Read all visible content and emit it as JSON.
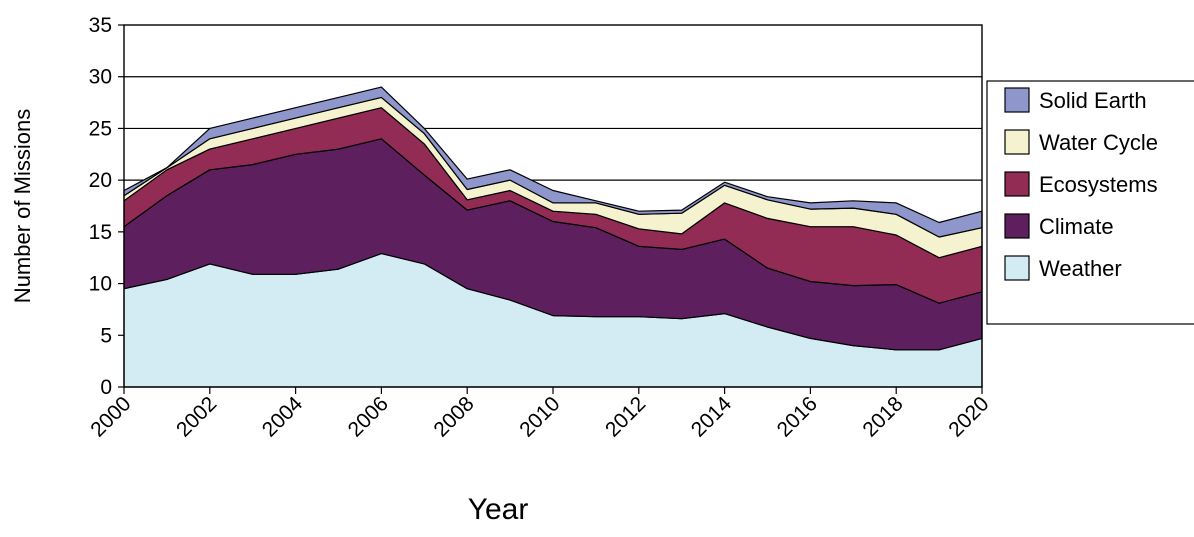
{
  "chart_data": {
    "type": "area",
    "stacked": true,
    "x": [
      2000,
      2001,
      2002,
      2003,
      2004,
      2005,
      2006,
      2007,
      2008,
      2009,
      2010,
      2011,
      2012,
      2013,
      2014,
      2015,
      2016,
      2017,
      2018,
      2019,
      2020
    ],
    "x_tick_labels": [
      "2000",
      "2002",
      "2004",
      "2006",
      "2008",
      "2010",
      "2012",
      "2014",
      "2016",
      "2018",
      "2020"
    ],
    "xlabel": "Year",
    "ylabel": "Number of Missions",
    "ylim": [
      0,
      35
    ],
    "y_ticks": [
      "0",
      "5",
      "10",
      "15",
      "20",
      "25",
      "30",
      "35"
    ],
    "grid": "horizontal",
    "legend_position": "right",
    "series": [
      {
        "name": "Weather",
        "color": "#d3ebf2",
        "values": [
          9.5,
          10.4,
          11.9,
          10.9,
          10.9,
          11.4,
          12.9,
          11.9,
          9.5,
          8.4,
          6.9,
          6.8,
          6.8,
          6.6,
          7.1,
          5.8,
          4.7,
          4.0,
          3.6,
          3.6,
          4.7
        ]
      },
      {
        "name": "Climate",
        "color": "#5e1f5f",
        "values": [
          6.0,
          8.1,
          9.1,
          10.6,
          11.6,
          11.6,
          11.1,
          8.6,
          7.6,
          9.6,
          9.1,
          8.6,
          6.8,
          6.7,
          7.2,
          5.7,
          5.5,
          5.8,
          6.3,
          4.5,
          4.5
        ]
      },
      {
        "name": "Ecosystems",
        "color": "#922c55",
        "values": [
          2.5,
          2.5,
          2.0,
          2.5,
          2.5,
          3.0,
          3.0,
          3.0,
          1.0,
          1.0,
          1.0,
          1.3,
          1.7,
          1.5,
          3.5,
          4.8,
          5.3,
          5.7,
          4.8,
          4.4,
          4.4
        ]
      },
      {
        "name": "Water Cycle",
        "color": "#f5f3cf",
        "values": [
          0.5,
          0.2,
          1.0,
          1.0,
          1.0,
          1.0,
          1.0,
          1.0,
          1.0,
          1.0,
          0.8,
          1.1,
          1.4,
          2.0,
          1.7,
          1.8,
          1.7,
          1.8,
          2.0,
          2.0,
          1.8
        ]
      },
      {
        "name": "Solid Earth",
        "color": "#8f96cc",
        "values": [
          0.5,
          0.0,
          1.0,
          1.0,
          1.0,
          1.0,
          1.0,
          0.5,
          1.0,
          1.0,
          1.2,
          0.2,
          0.3,
          0.3,
          0.3,
          0.3,
          0.6,
          0.7,
          1.1,
          1.4,
          1.6
        ]
      }
    ]
  }
}
